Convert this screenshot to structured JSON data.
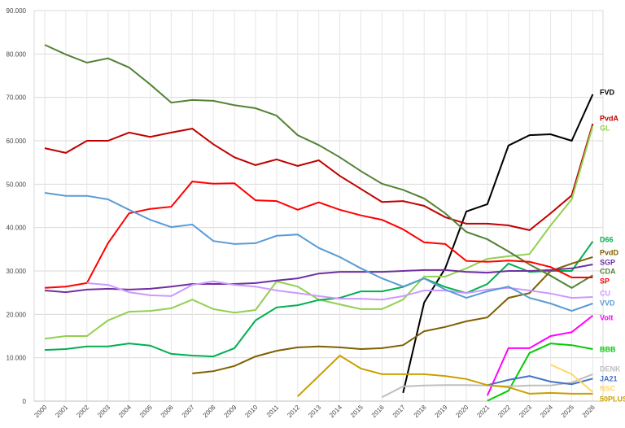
{
  "chart_data": {
    "type": "line",
    "categories": [
      "2000",
      "2001",
      "2002",
      "2003",
      "2004",
      "2005",
      "2006",
      "2007",
      "2008",
      "2009",
      "2010",
      "2011",
      "2012",
      "2013",
      "2014",
      "2015",
      "2016",
      "2017",
      "2018",
      "2019",
      "2020",
      "2021",
      "2022",
      "2023",
      "2024",
      "2025",
      "2026"
    ],
    "ylim": [
      0,
      90000
    ],
    "yticks": [
      {
        "value": 0,
        "label": "0"
      },
      {
        "value": 10000,
        "label": "10.000"
      },
      {
        "value": 20000,
        "label": "20.000"
      },
      {
        "value": 30000,
        "label": "30.000"
      },
      {
        "value": 40000,
        "label": "40.000"
      },
      {
        "value": 50000,
        "label": "50.000"
      },
      {
        "value": 60000,
        "label": "60.000"
      },
      {
        "value": 70000,
        "label": "70.000"
      },
      {
        "value": 80000,
        "label": "80.000"
      },
      {
        "value": 90000,
        "label": "90.000"
      }
    ],
    "grid": true,
    "series": [
      {
        "name": "FVD",
        "color": "#000000",
        "values": [
          null,
          null,
          null,
          null,
          null,
          null,
          null,
          null,
          null,
          null,
          null,
          null,
          null,
          null,
          null,
          null,
          null,
          1900,
          22700,
          30600,
          43700,
          45400,
          58900,
          61300,
          61500,
          60000,
          70700
        ]
      },
      {
        "name": "PvdA",
        "color": "#c00000",
        "values": [
          58300,
          57200,
          60000,
          60000,
          61900,
          60900,
          61900,
          62800,
          59200,
          56200,
          54400,
          55700,
          54200,
          55500,
          51900,
          48900,
          45900,
          46100,
          45000,
          42400,
          40900,
          40900,
          40500,
          39400,
          43300,
          47400,
          63900
        ]
      },
      {
        "name": "GL",
        "color": "#92d050",
        "values": [
          14400,
          15000,
          15000,
          18600,
          20600,
          20800,
          21400,
          23400,
          21200,
          20400,
          21000,
          27600,
          26400,
          23400,
          22300,
          21200,
          21200,
          23400,
          28700,
          28700,
          30600,
          32800,
          33400,
          33900,
          40500,
          46500,
          63400
        ]
      },
      {
        "name": "D66",
        "color": "#00b050",
        "values": [
          11800,
          12000,
          12600,
          12600,
          13300,
          12800,
          10900,
          10500,
          10300,
          12200,
          18600,
          21600,
          22100,
          23300,
          23800,
          25300,
          25300,
          26300,
          28300,
          26300,
          24900,
          27000,
          31700,
          29800,
          30000,
          30000,
          36800
        ]
      },
      {
        "name": "PvdD",
        "color": "#7f6000",
        "values": [
          null,
          null,
          null,
          null,
          null,
          null,
          null,
          6400,
          6900,
          8100,
          10300,
          11600,
          12400,
          12600,
          12400,
          12000,
          12200,
          12900,
          16100,
          17100,
          18400,
          19300,
          23800,
          24900,
          30000,
          31700,
          33200
        ]
      },
      {
        "name": "SGP",
        "color": "#7030a0",
        "values": [
          25500,
          25100,
          25700,
          25900,
          25700,
          25900,
          26400,
          27000,
          27000,
          27000,
          27200,
          27800,
          28300,
          29400,
          29800,
          29800,
          29800,
          30000,
          30200,
          30200,
          29800,
          29600,
          30000,
          30000,
          30200,
          30600,
          31500
        ]
      },
      {
        "name": "CDA",
        "color": "#548235",
        "values": [
          82100,
          79900,
          78000,
          79000,
          76900,
          73000,
          68800,
          69400,
          69200,
          68200,
          67500,
          65800,
          61300,
          59000,
          56200,
          53000,
          50100,
          48700,
          46700,
          43300,
          39000,
          37300,
          34500,
          31500,
          28900,
          26100,
          29000
        ]
      },
      {
        "name": "SP",
        "color": "#ff0000",
        "values": [
          26100,
          26400,
          27200,
          36400,
          43300,
          44300,
          44800,
          50600,
          50100,
          50200,
          46300,
          46100,
          44100,
          45800,
          44100,
          42800,
          41800,
          39600,
          36600,
          36200,
          32300,
          32100,
          32400,
          32100,
          30900,
          28500,
          28500
        ]
      },
      {
        "name": "CU",
        "color": "#cc99ff",
        "values": [
          null,
          null,
          27200,
          26800,
          25100,
          24400,
          24200,
          26800,
          27600,
          26800,
          26400,
          25500,
          24900,
          24200,
          23600,
          23600,
          23400,
          24200,
          25500,
          25500,
          24900,
          25700,
          26100,
          25500,
          24800,
          23800,
          24000
        ]
      },
      {
        "name": "VVD",
        "color": "#5b9bd5",
        "values": [
          48000,
          47300,
          47300,
          46500,
          44100,
          41800,
          40100,
          40700,
          36900,
          36200,
          36400,
          38100,
          38400,
          35300,
          33200,
          30600,
          28300,
          26400,
          28300,
          25700,
          23800,
          25300,
          26400,
          23800,
          22500,
          20800,
          22500
        ]
      },
      {
        "name": "Volt",
        "color": "#ff00ff",
        "values": [
          null,
          null,
          null,
          null,
          null,
          null,
          null,
          null,
          null,
          null,
          null,
          null,
          null,
          null,
          null,
          null,
          null,
          null,
          null,
          null,
          null,
          1300,
          12200,
          12200,
          15000,
          15900,
          19700
        ]
      },
      {
        "name": "BBB",
        "color": "#00cc00",
        "values": [
          null,
          null,
          null,
          null,
          null,
          null,
          null,
          null,
          null,
          null,
          null,
          null,
          null,
          null,
          null,
          null,
          null,
          null,
          null,
          null,
          null,
          100,
          2400,
          11100,
          13300,
          12900,
          12000
        ]
      },
      {
        "name": "DENK",
        "color": "#bfbfbf",
        "values": [
          null,
          null,
          null,
          null,
          null,
          null,
          null,
          null,
          null,
          null,
          null,
          null,
          null,
          null,
          null,
          null,
          900,
          3400,
          3600,
          3700,
          3700,
          3600,
          3400,
          3600,
          3600,
          4300,
          6200
        ]
      },
      {
        "name": "JA21",
        "color": "#4472c4",
        "values": [
          null,
          null,
          null,
          null,
          null,
          null,
          null,
          null,
          null,
          null,
          null,
          null,
          null,
          null,
          null,
          null,
          null,
          null,
          null,
          null,
          null,
          3700,
          4900,
          5800,
          4500,
          3900,
          5200
        ]
      },
      {
        "name": "NSC",
        "color": "#ffd966",
        "values": [
          null,
          null,
          null,
          null,
          null,
          null,
          null,
          null,
          null,
          null,
          null,
          null,
          null,
          null,
          null,
          null,
          null,
          null,
          null,
          null,
          null,
          null,
          null,
          null,
          8400,
          6200,
          2100
        ]
      },
      {
        "name": "50PLUS",
        "color": "#c9a000",
        "values": [
          null,
          null,
          null,
          null,
          null,
          null,
          null,
          null,
          null,
          null,
          null,
          null,
          1100,
          5800,
          10500,
          7500,
          6200,
          6200,
          6200,
          5800,
          5100,
          3700,
          3200,
          1700,
          1900,
          1700,
          1700
        ]
      }
    ]
  }
}
